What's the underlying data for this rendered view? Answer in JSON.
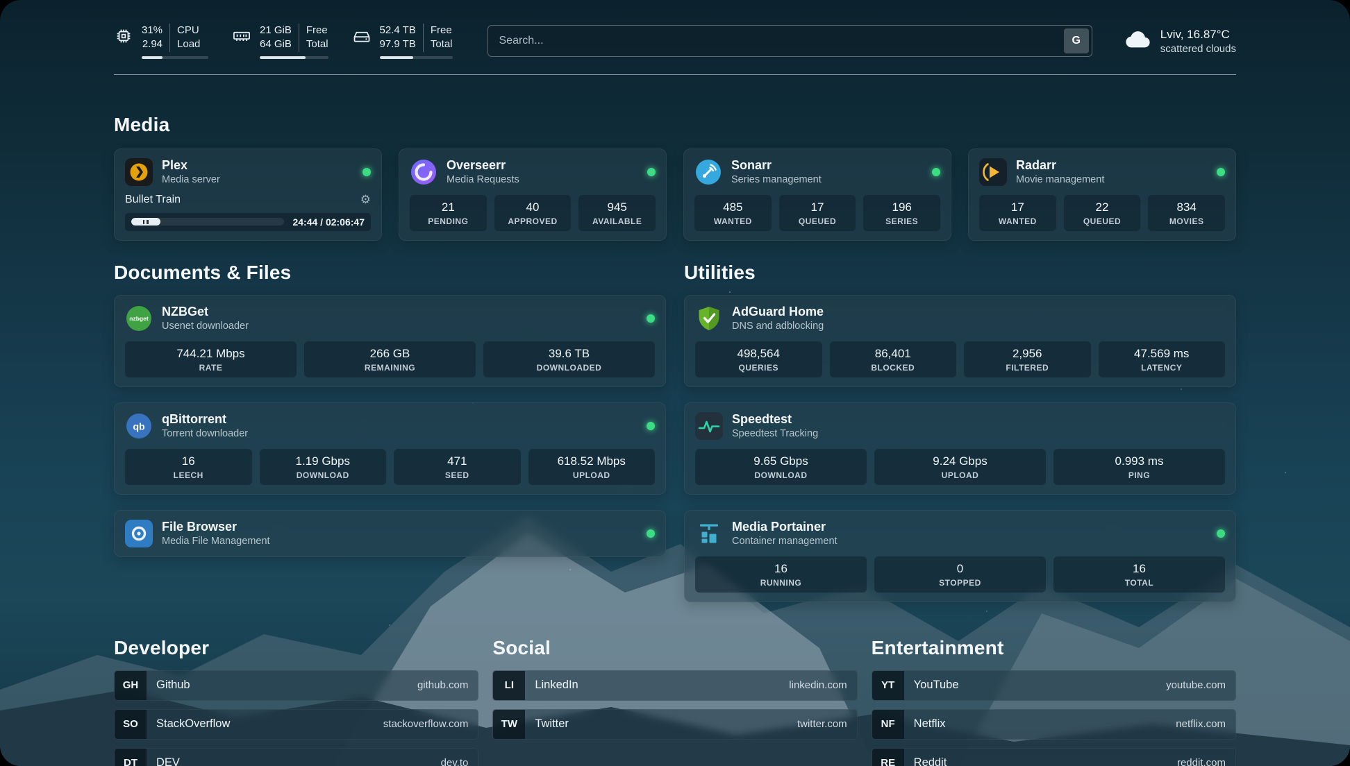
{
  "topbar": {
    "cpu": {
      "value1": "31%",
      "value2": "2.94",
      "label1": "CPU",
      "label2": "Load",
      "progress": 31
    },
    "memory": {
      "value1": "21 GiB",
      "value2": "64 GiB",
      "label1": "Free",
      "label2": "Total",
      "progress": 67
    },
    "disk": {
      "value1": "52.4 TB",
      "value2": "97.9 TB",
      "label1": "Free",
      "label2": "Total",
      "progress": 46
    },
    "search": {
      "placeholder": "Search...",
      "button_label": "G"
    },
    "weather": {
      "location": "Lviv, 16.87°C",
      "condition": "scattered clouds"
    }
  },
  "sections": {
    "media": "Media",
    "documents": "Documents & Files",
    "utilities": "Utilities",
    "developer": "Developer",
    "social": "Social",
    "entertainment": "Entertainment"
  },
  "apps": {
    "plex": {
      "name": "Plex",
      "desc": "Media server",
      "now_playing": "Bullet Train",
      "time": "24:44 / 02:06:47",
      "progress": 19
    },
    "overseerr": {
      "name": "Overseerr",
      "desc": "Media Requests",
      "stats": [
        {
          "value": "21",
          "label": "PENDING"
        },
        {
          "value": "40",
          "label": "APPROVED"
        },
        {
          "value": "945",
          "label": "AVAILABLE"
        }
      ]
    },
    "sonarr": {
      "name": "Sonarr",
      "desc": "Series management",
      "stats": [
        {
          "value": "485",
          "label": "WANTED"
        },
        {
          "value": "17",
          "label": "QUEUED"
        },
        {
          "value": "196",
          "label": "SERIES"
        }
      ]
    },
    "radarr": {
      "name": "Radarr",
      "desc": "Movie management",
      "stats": [
        {
          "value": "17",
          "label": "WANTED"
        },
        {
          "value": "22",
          "label": "QUEUED"
        },
        {
          "value": "834",
          "label": "MOVIES"
        }
      ]
    },
    "nzbget": {
      "name": "NZBGet",
      "desc": "Usenet downloader",
      "stats": [
        {
          "value": "744.21 Mbps",
          "label": "RATE"
        },
        {
          "value": "266 GB",
          "label": "REMAINING"
        },
        {
          "value": "39.6 TB",
          "label": "DOWNLOADED"
        }
      ]
    },
    "qbittorrent": {
      "name": "qBittorrent",
      "desc": "Torrent downloader",
      "stats": [
        {
          "value": "16",
          "label": "LEECH"
        },
        {
          "value": "1.19 Gbps",
          "label": "DOWNLOAD"
        },
        {
          "value": "471",
          "label": "SEED"
        },
        {
          "value": "618.52 Mbps",
          "label": "UPLOAD"
        }
      ]
    },
    "filebrowser": {
      "name": "File Browser",
      "desc": "Media File Management"
    },
    "adguard": {
      "name": "AdGuard Home",
      "desc": "DNS and adblocking",
      "stats": [
        {
          "value": "498,564",
          "label": "QUERIES"
        },
        {
          "value": "86,401",
          "label": "BLOCKED"
        },
        {
          "value": "2,956",
          "label": "FILTERED"
        },
        {
          "value": "47.569 ms",
          "label": "LATENCY"
        }
      ]
    },
    "speedtest": {
      "name": "Speedtest",
      "desc": "Speedtest Tracking",
      "stats": [
        {
          "value": "9.65 Gbps",
          "label": "DOWNLOAD"
        },
        {
          "value": "9.24 Gbps",
          "label": "UPLOAD"
        },
        {
          "value": "0.993 ms",
          "label": "PING"
        }
      ]
    },
    "portainer": {
      "name": "Media Portainer",
      "desc": "Container management",
      "stats": [
        {
          "value": "16",
          "label": "RUNNING"
        },
        {
          "value": "0",
          "label": "STOPPED"
        },
        {
          "value": "16",
          "label": "TOTAL"
        }
      ]
    }
  },
  "bookmarks": {
    "developer": [
      {
        "abbr": "GH",
        "name": "Github",
        "url": "github.com"
      },
      {
        "abbr": "SO",
        "name": "StackOverflow",
        "url": "stackoverflow.com"
      },
      {
        "abbr": "DT",
        "name": "DEV",
        "url": "dev.to"
      }
    ],
    "social": [
      {
        "abbr": "LI",
        "name": "LinkedIn",
        "url": "linkedin.com"
      },
      {
        "abbr": "TW",
        "name": "Twitter",
        "url": "twitter.com"
      }
    ],
    "entertainment": [
      {
        "abbr": "YT",
        "name": "YouTube",
        "url": "youtube.com"
      },
      {
        "abbr": "NF",
        "name": "Netflix",
        "url": "netflix.com"
      },
      {
        "abbr": "RE",
        "name": "Reddit",
        "url": "reddit.com"
      }
    ]
  },
  "colors": {
    "status_online": "#3ddc84",
    "accent_plex": "#e5a00d",
    "accent_radarr": "#f7b731",
    "accent_sonarr": "#35a8dd",
    "accent_overseerr": "#7c5cf0",
    "accent_nzbget": "#3fa344",
    "accent_qbittorrent": "#3873c0",
    "accent_adguard": "#67b32a",
    "accent_speedtest": "#2dd4a7",
    "accent_portainer": "#41b0cf",
    "accent_filebrowser": "#2f7cc3"
  }
}
